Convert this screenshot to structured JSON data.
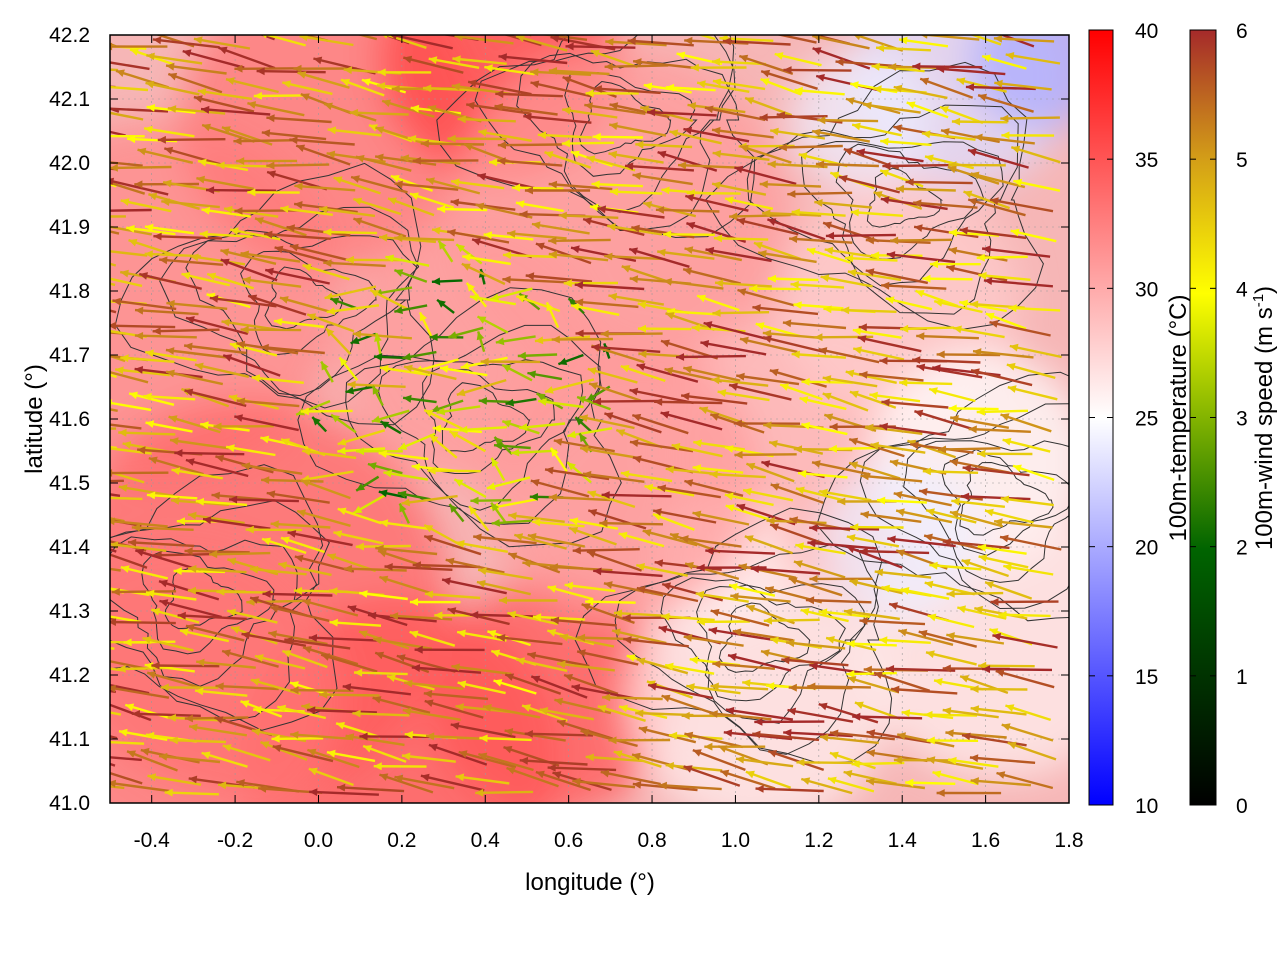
{
  "chart_data": {
    "type": "heatmap",
    "title": "",
    "xlabel": "longitude (°)",
    "ylabel": "latitude (°)",
    "xlim": [
      -0.5,
      1.8
    ],
    "ylim": [
      41.0,
      42.2
    ],
    "x_ticks": [
      "-0.4",
      "-0.2",
      "0.0",
      "0.2",
      "0.4",
      "0.6",
      "0.8",
      "1.0",
      "1.2",
      "1.4",
      "1.6",
      "1.8"
    ],
    "x_tick_values": [
      -0.4,
      -0.2,
      0.0,
      0.2,
      0.4,
      0.6,
      0.8,
      1.0,
      1.2,
      1.4,
      1.6,
      1.8
    ],
    "y_ticks": [
      "41.0",
      "41.1",
      "41.2",
      "41.3",
      "41.4",
      "41.5",
      "41.6",
      "41.7",
      "41.8",
      "41.9",
      "42.0",
      "42.1",
      "42.2"
    ],
    "y_tick_values": [
      41.0,
      41.1,
      41.2,
      41.3,
      41.4,
      41.5,
      41.6,
      41.7,
      41.8,
      41.9,
      42.0,
      42.1,
      42.2
    ],
    "grid": true,
    "background_field": {
      "name": "100m-temperature",
      "colorbar_label": "100m-temperature (°C)",
      "range": [
        10,
        40
      ],
      "ticks": [
        "10",
        "15",
        "20",
        "25",
        "30",
        "35",
        "40"
      ],
      "tick_values": [
        10,
        15,
        20,
        25,
        30,
        35,
        40
      ],
      "colormap": [
        "#0000ff",
        "#ffffff",
        "#ff0000"
      ],
      "approx_regions": [
        {
          "desc": "west and south-west",
          "value": 33
        },
        {
          "desc": "central plateau",
          "value": 31
        },
        {
          "desc": "north-east and east coast",
          "value": 26
        },
        {
          "desc": "cool pockets north-east",
          "value": 21
        }
      ]
    },
    "vector_field": {
      "name": "100m-wind speed",
      "colorbar_label_main": "100m-wind speed (m s",
      "colorbar_label_exp": "-1",
      "colorbar_label_close": ")",
      "range": [
        0,
        6
      ],
      "ticks": [
        "0",
        "1",
        "2",
        "3",
        "4",
        "5",
        "6"
      ],
      "tick_values": [
        0,
        1,
        2,
        3,
        4,
        5,
        6
      ],
      "colormap": [
        "#000000",
        "#006400",
        "#ffff00",
        "#d4a017",
        "#a52a2a"
      ],
      "prevailing_direction": "from east-southeast toward west-northwest"
    },
    "contours": {
      "color": "#333333",
      "desc": "terrain elevation contours"
    }
  }
}
